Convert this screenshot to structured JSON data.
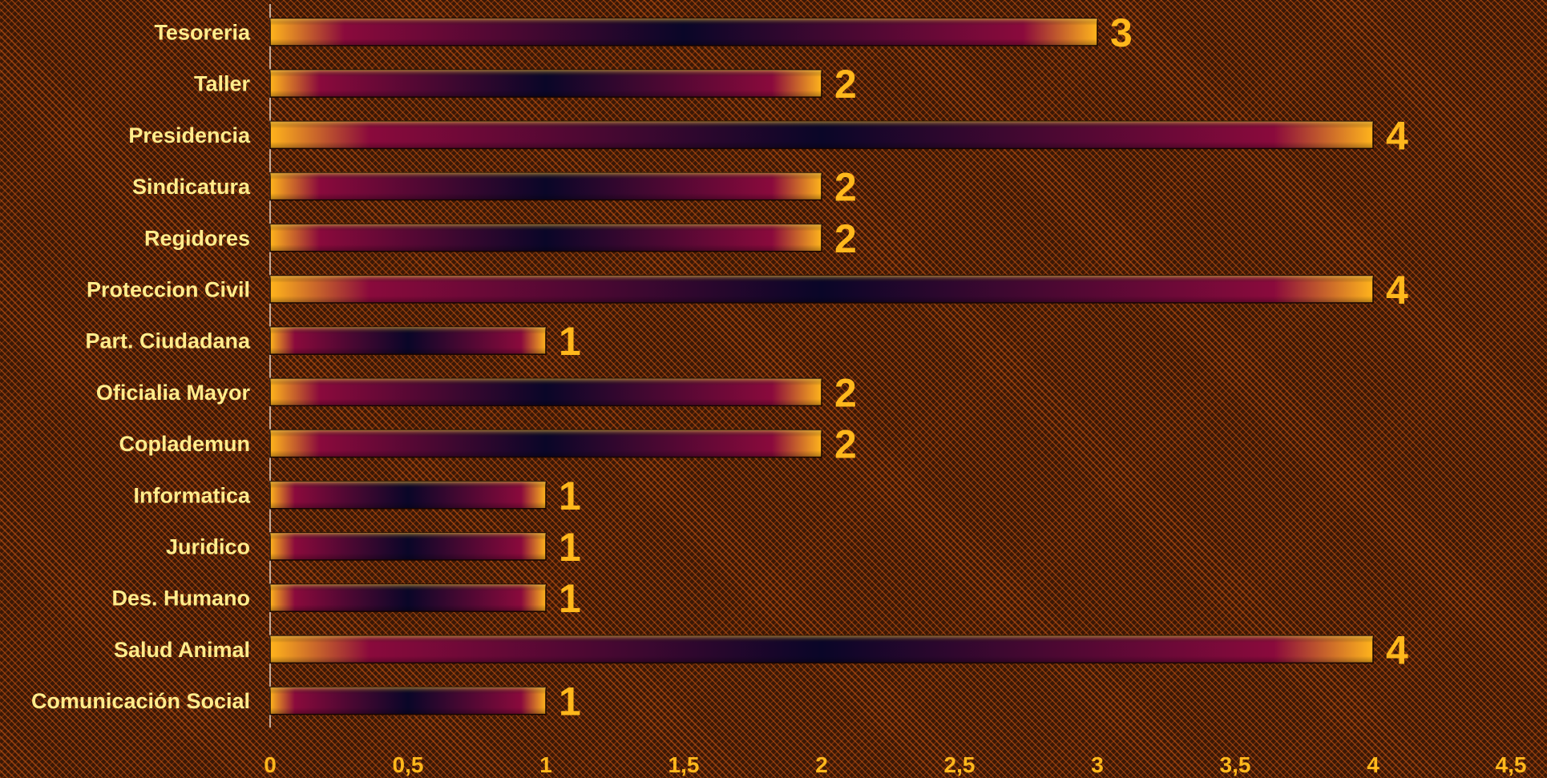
{
  "chart_data": {
    "type": "bar",
    "orientation": "horizontal",
    "categories": [
      "Tesoreria",
      "Taller",
      "Presidencia",
      "Sindicatura",
      "Regidores",
      "Proteccion Civil",
      "Part. Ciudadana",
      "Oficialia Mayor",
      "Coplademun",
      "Informatica",
      "Juridico",
      "Des. Humano",
      "Salud Animal",
      "Comunicación Social"
    ],
    "values": [
      3,
      2,
      4,
      2,
      2,
      4,
      1,
      2,
      2,
      1,
      1,
      1,
      4,
      1
    ],
    "value_labels": [
      "3",
      "2",
      "4",
      "2",
      "2",
      "4",
      "1",
      "2",
      "2",
      "1",
      "1",
      "1",
      "4",
      "1"
    ],
    "x_ticks": [
      "0",
      "0,5",
      "1",
      "1,5",
      "2",
      "2,5",
      "3",
      "3,5",
      "4",
      "4,5"
    ],
    "xlim": [
      0,
      4.5
    ],
    "title": "",
    "xlabel": "",
    "ylabel": "",
    "grid": false,
    "legend": "none",
    "colors": {
      "bar_edge": "#ffaa10",
      "bar_mid": "#8a0a3c",
      "bar_center": "#0a0628",
      "value_label": "#ffb81c",
      "category_label": "#ffec8c",
      "axis": "#e8d8c8"
    }
  }
}
